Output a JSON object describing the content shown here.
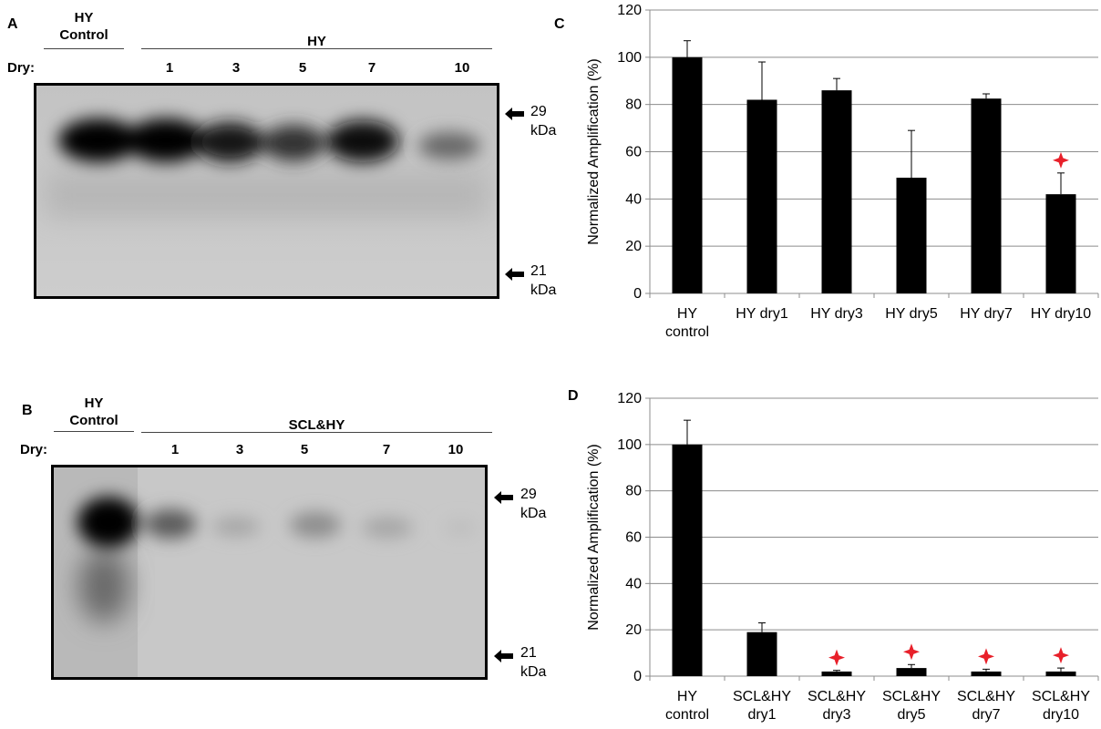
{
  "panels": {
    "a": {
      "letter": "A",
      "control_label": "HY\nControl",
      "group_label": "HY",
      "dry_label": "Dry:",
      "lanes": [
        "1",
        "3",
        "5",
        "7",
        "10"
      ],
      "markers": [
        {
          "value": "29",
          "unit": "kDa"
        },
        {
          "value": "21",
          "unit": "kDa"
        }
      ]
    },
    "b": {
      "letter": "B",
      "control_label": "HY\nControl",
      "group_label": "SCL&HY",
      "dry_label": "Dry:",
      "lanes": [
        "1",
        "3",
        "5",
        "7",
        "10"
      ],
      "markers": [
        {
          "value": "29",
          "unit": "kDa"
        },
        {
          "value": "21",
          "unit": "kDa"
        }
      ]
    },
    "c": {
      "letter": "C"
    },
    "d": {
      "letter": "D"
    }
  },
  "colors": {
    "bar": "#000000",
    "grid": "#8c8c8c",
    "star": "#e8202a"
  },
  "chart_data": [
    {
      "type": "bar",
      "categories": [
        "HY\ncontrol",
        "HY dry1",
        "HY dry3",
        "HY dry5",
        "HY dry7",
        "HY dry10"
      ],
      "values": [
        100,
        82,
        86,
        49,
        82.5,
        42
      ],
      "errors": [
        7,
        16,
        5,
        20,
        2,
        9
      ],
      "significant": [
        false,
        false,
        false,
        false,
        false,
        true
      ],
      "ylabel": "Normalized Amplification (%)",
      "ylim": [
        0,
        120
      ],
      "yticks": [
        0,
        20,
        40,
        60,
        80,
        100,
        120
      ],
      "grid": true
    },
    {
      "type": "bar",
      "categories": [
        "HY\ncontrol",
        "SCL&HY\ndry1",
        "SCL&HY\ndry3",
        "SCL&HY\ndry5",
        "SCL&HY\ndry7",
        "SCL&HY\ndry10"
      ],
      "values": [
        100,
        19,
        2,
        3.5,
        2,
        2
      ],
      "errors": [
        10.5,
        4,
        0.5,
        1.5,
        1,
        1.5
      ],
      "significant": [
        false,
        false,
        true,
        true,
        true,
        true
      ],
      "ylabel": "Normalized Amplification (%)",
      "ylim": [
        0,
        120
      ],
      "yticks": [
        0,
        20,
        40,
        60,
        80,
        100,
        120
      ],
      "grid": true
    }
  ]
}
